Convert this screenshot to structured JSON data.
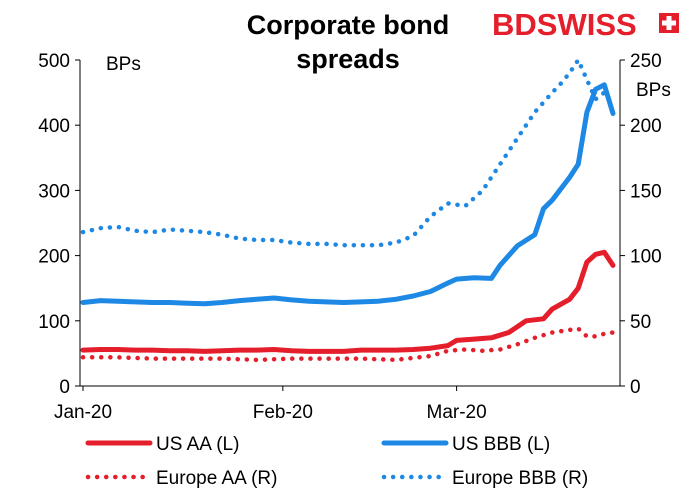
{
  "brand": {
    "part1": "BD",
    "part2": "SWISS",
    "color1": "#e41e2b",
    "color2": "#e41e2b"
  },
  "chart_data": {
    "type": "line",
    "title": "Corporate bond spreads",
    "title_lines": [
      "Corporate bond",
      "spreads"
    ],
    "left_axis": {
      "unit": "BPs",
      "range": [
        0,
        500
      ],
      "ticks": [
        0,
        100,
        200,
        300,
        400,
        500
      ]
    },
    "right_axis": {
      "unit": "BPs",
      "range": [
        0,
        250
      ],
      "ticks": [
        0,
        50,
        100,
        150,
        200,
        250
      ]
    },
    "x_axis": {
      "range": [
        0,
        61
      ],
      "ticks": [
        {
          "label": "Jan-20",
          "day": 0
        },
        {
          "label": "Feb-20",
          "day": 23
        },
        {
          "label": "Mar-20",
          "day": 43
        }
      ]
    },
    "series": [
      {
        "name": "US AA (L)",
        "axis": "left",
        "color": "#e41e2b",
        "style": "solid",
        "days": [
          0,
          2,
          4,
          6,
          8,
          10,
          12,
          14,
          16,
          18,
          20,
          22,
          24,
          26,
          28,
          30,
          32,
          34,
          36,
          38,
          40,
          42,
          43,
          45,
          47,
          49,
          51,
          53,
          54,
          56,
          57,
          58,
          59,
          60,
          61
        ],
        "values": [
          55,
          56,
          56,
          55,
          55,
          54,
          54,
          53,
          54,
          55,
          55,
          56,
          54,
          53,
          53,
          53,
          55,
          55,
          55,
          56,
          58,
          62,
          70,
          72,
          74,
          82,
          100,
          103,
          118,
          133,
          150,
          190,
          202,
          205,
          185
        ]
      },
      {
        "name": "US BBB (L)",
        "axis": "left",
        "color": "#1e88e5",
        "style": "solid",
        "days": [
          0,
          2,
          4,
          6,
          8,
          10,
          12,
          14,
          16,
          18,
          20,
          22,
          24,
          26,
          28,
          30,
          32,
          34,
          36,
          38,
          40,
          42,
          43,
          45,
          47,
          48,
          50,
          52,
          53,
          54,
          56,
          57,
          58,
          59,
          60,
          61
        ],
        "values": [
          128,
          131,
          130,
          129,
          128,
          128,
          127,
          126,
          128,
          131,
          133,
          135,
          132,
          130,
          129,
          128,
          129,
          130,
          133,
          138,
          145,
          158,
          164,
          166,
          165,
          185,
          215,
          232,
          272,
          285,
          320,
          340,
          420,
          455,
          462,
          418
        ]
      },
      {
        "name": "Europe AA (R)",
        "axis": "right",
        "color": "#e41e2b",
        "style": "dotted",
        "days": [
          0,
          4,
          8,
          12,
          16,
          20,
          24,
          28,
          32,
          36,
          40,
          42,
          44,
          46,
          48,
          50,
          52,
          54,
          56,
          57,
          58,
          59,
          60,
          61
        ],
        "values": [
          22,
          22,
          21,
          21,
          21,
          20,
          21,
          21,
          21,
          20,
          23,
          27,
          28,
          27,
          28,
          32,
          37,
          41,
          43,
          44,
          38,
          38,
          40,
          41
        ]
      },
      {
        "name": "Europe BBB (R)",
        "axis": "right",
        "color": "#1e88e5",
        "style": "dotted",
        "days": [
          0,
          2,
          4,
          6,
          8,
          10,
          12,
          14,
          16,
          18,
          20,
          22,
          24,
          26,
          28,
          30,
          32,
          34,
          36,
          38,
          40,
          42,
          44,
          46,
          48,
          50,
          52,
          54,
          55,
          56,
          57,
          58,
          59,
          60,
          61
        ],
        "values": [
          118,
          121,
          122,
          119,
          118,
          120,
          119,
          118,
          116,
          113,
          112,
          112,
          110,
          109,
          109,
          108,
          108,
          108,
          110,
          115,
          130,
          140,
          138,
          150,
          170,
          190,
          210,
          225,
          232,
          240,
          250,
          235,
          220,
          225,
          215
        ]
      }
    ],
    "legend": {
      "placement": "bottom",
      "items": [
        "US AA (L)",
        "US BBB (L)",
        "Europe AA (R)",
        "Europe BBB (R)"
      ]
    }
  }
}
